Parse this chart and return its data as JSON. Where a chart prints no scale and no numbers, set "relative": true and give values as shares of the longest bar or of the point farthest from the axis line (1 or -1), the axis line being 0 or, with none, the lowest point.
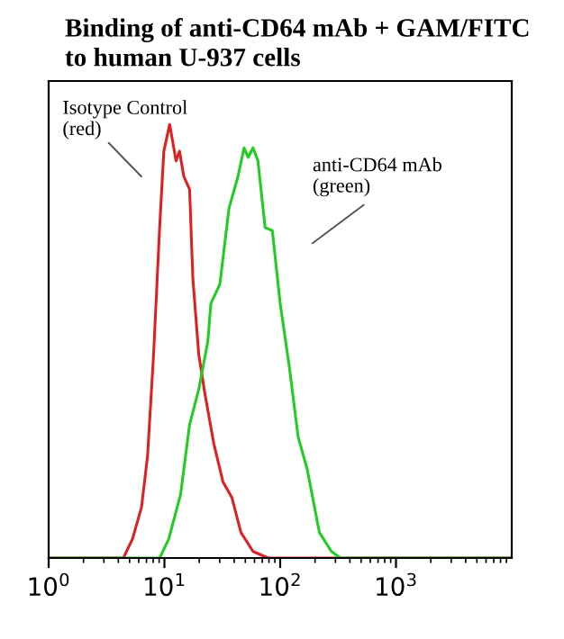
{
  "chart_data": {
    "type": "line",
    "title": "Binding of anti-CD64 mAb + GAM/FITC\nto human U-937 cells",
    "relative": true,
    "log": "x",
    "xlim": [
      1,
      10000
    ],
    "xticks": [
      {
        "value": 1,
        "label": "10$^{0}$"
      },
      {
        "value": 10,
        "label": "10$^{1}$"
      },
      {
        "value": 100,
        "label": "10$^{2}$"
      },
      {
        "value": 1000,
        "label": "10$^{3}$"
      }
    ],
    "tick_labels": "x",
    "annotations": [
      "Isotype Control\n(red)",
      "anti-CD64 mAb\n(green)"
    ],
    "series": [
      {
        "color": "#e02020",
        "x": [
          1,
          4.42,
          5.3,
          6.34,
          7.15,
          8.06,
          9.09,
          9.88,
          11.1,
          12.6,
          13.5,
          14.7,
          16.5,
          17.6,
          19.8,
          22.3,
          26.7,
          32.0,
          38.3,
          45.8,
          58.3,
          78.7,
          10000
        ],
        "values": [
          0,
          0,
          0.044,
          0.117,
          0.235,
          0.469,
          0.762,
          0.938,
          1.0,
          0.916,
          0.938,
          0.88,
          0.85,
          0.645,
          0.469,
          0.381,
          0.264,
          0.176,
          0.139,
          0.059,
          0.015,
          0,
          0
        ]
      },
      {
        "color": "#22cc22",
        "x": [
          1,
          9.1,
          10.9,
          13.8,
          16.5,
          19.8,
          23.7,
          25.2,
          30.1,
          36.1,
          43.2,
          48.7,
          52.9,
          58.3,
          64.2,
          74.1,
          85.5,
          100,
          120,
          143,
          171,
          218,
          277,
          332,
          10000
        ],
        "values": [
          0,
          0,
          0.044,
          0.147,
          0.308,
          0.389,
          0.499,
          0.587,
          0.631,
          0.806,
          0.88,
          0.946,
          0.924,
          0.946,
          0.916,
          0.762,
          0.755,
          0.587,
          0.44,
          0.279,
          0.205,
          0.059,
          0.015,
          0,
          0
        ]
      }
    ]
  }
}
